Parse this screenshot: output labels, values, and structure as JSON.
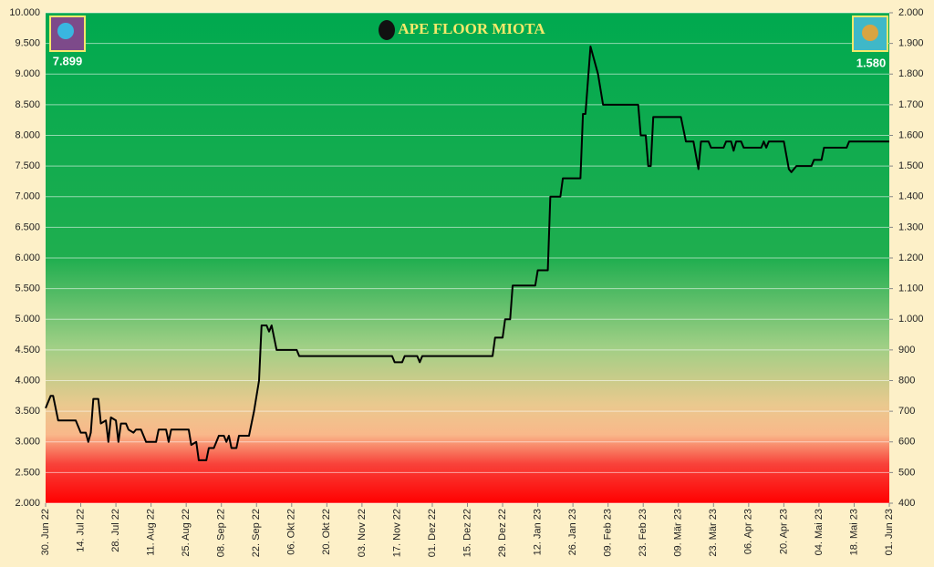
{
  "chart_data": {
    "type": "line",
    "title": "APE FLOOR MIOTA",
    "left_label": "7.899",
    "right_label": "1.580",
    "x": [
      "2022-06-30",
      "2022-07-02",
      "2022-07-03",
      "2022-07-05",
      "2022-07-12",
      "2022-07-14",
      "2022-07-16",
      "2022-07-17",
      "2022-07-18",
      "2022-07-19",
      "2022-07-21",
      "2022-07-22",
      "2022-07-24",
      "2022-07-25",
      "2022-07-26",
      "2022-07-28",
      "2022-07-29",
      "2022-07-30",
      "2022-08-01",
      "2022-08-02",
      "2022-08-04",
      "2022-08-05",
      "2022-08-07",
      "2022-08-09",
      "2022-08-13",
      "2022-08-14",
      "2022-08-17",
      "2022-08-18",
      "2022-08-19",
      "2022-08-26",
      "2022-08-27",
      "2022-08-29",
      "2022-08-30",
      "2022-09-02",
      "2022-09-03",
      "2022-09-05",
      "2022-09-07",
      "2022-09-09",
      "2022-09-10",
      "2022-09-11",
      "2022-09-12",
      "2022-09-14",
      "2022-09-15",
      "2022-09-19",
      "2022-09-21",
      "2022-09-23",
      "2022-09-24",
      "2022-09-26",
      "2022-09-27",
      "2022-09-28",
      "2022-09-30",
      "2022-10-08",
      "2022-10-09",
      "2022-11-15",
      "2022-11-16",
      "2022-11-19",
      "2022-11-20",
      "2022-11-25",
      "2022-11-26",
      "2022-11-27",
      "2022-12-25",
      "2022-12-26",
      "2022-12-29",
      "2022-12-30",
      "2023-01-01",
      "2023-01-02",
      "2023-01-11",
      "2023-01-12",
      "2023-01-16",
      "2023-01-17",
      "2023-01-21",
      "2023-01-22",
      "2023-01-29",
      "2023-01-30",
      "2023-01-31",
      "2023-02-02",
      "2023-02-04",
      "2023-02-05",
      "2023-02-07",
      "2023-02-21",
      "2023-02-22",
      "2023-02-24",
      "2023-02-25",
      "2023-02-26",
      "2023-02-27",
      "2023-03-10",
      "2023-03-11",
      "2023-03-12",
      "2023-03-15",
      "2023-03-17",
      "2023-03-18",
      "2023-03-21",
      "2023-03-22",
      "2023-03-27",
      "2023-03-28",
      "2023-03-30",
      "2023-03-31",
      "2023-04-01",
      "2023-04-03",
      "2023-04-04",
      "2023-04-11",
      "2023-04-12",
      "2023-04-13",
      "2023-04-14",
      "2023-04-20",
      "2023-04-22",
      "2023-04-23",
      "2023-04-25",
      "2023-05-01",
      "2023-05-02",
      "2023-05-05",
      "2023-05-06",
      "2023-05-15",
      "2023-05-16",
      "2023-06-01"
    ],
    "series": [
      {
        "color": "#000000",
        "values": [
          3550,
          3750,
          3750,
          3350,
          3350,
          3150,
          3150,
          3000,
          3150,
          3700,
          3700,
          3300,
          3350,
          3000,
          3400,
          3350,
          3000,
          3300,
          3300,
          3200,
          3150,
          3200,
          3200,
          3000,
          3000,
          3200,
          3200,
          3000,
          3200,
          3200,
          2950,
          3000,
          2700,
          2700,
          2900,
          2900,
          3100,
          3100,
          3000,
          3100,
          2900,
          2900,
          3100,
          3100,
          3500,
          4000,
          4900,
          4900,
          4800,
          4900,
          4500,
          4500,
          4400,
          4400,
          4300,
          4300,
          4400,
          4400,
          4300,
          4400,
          4400,
          4700,
          4700,
          5000,
          5000,
          5550,
          5550,
          5800,
          5800,
          7000,
          7000,
          7300,
          7300,
          8350,
          8350,
          9450,
          9150,
          9000,
          8500,
          8500,
          8000,
          8000,
          7500,
          7500,
          8300,
          8300,
          8100,
          7900,
          7900,
          7450,
          7900,
          7900,
          7800,
          7800,
          7900,
          7900,
          7750,
          7900,
          7900,
          7800,
          7800,
          7900,
          7800,
          7900,
          7900,
          7450,
          7400,
          7500,
          7500,
          7600,
          7600,
          7800,
          7800,
          7900,
          7899
        ]
      }
    ],
    "xlim": [
      "2022-06-30",
      "2023-06-01"
    ],
    "xticks": [
      {
        "value": "2022-06-30",
        "label": "30. Jun 22"
      },
      {
        "value": "2022-07-14",
        "label": "14. Jul 22"
      },
      {
        "value": "2022-07-28",
        "label": "28. Jul 22"
      },
      {
        "value": "2022-08-11",
        "label": "11. Aug 22"
      },
      {
        "value": "2022-08-25",
        "label": "25. Aug 22"
      },
      {
        "value": "2022-09-08",
        "label": "08. Sep 22"
      },
      {
        "value": "2022-09-22",
        "label": "22. Sep 22"
      },
      {
        "value": "2022-10-06",
        "label": "06. Okt 22"
      },
      {
        "value": "2022-10-20",
        "label": "20. Okt 22"
      },
      {
        "value": "2022-11-03",
        "label": "03. Nov 22"
      },
      {
        "value": "2022-11-17",
        "label": "17. Nov 22"
      },
      {
        "value": "2022-12-01",
        "label": "01. Dez 22"
      },
      {
        "value": "2022-12-15",
        "label": "15. Dez 22"
      },
      {
        "value": "2022-12-29",
        "label": "29. Dez 22"
      },
      {
        "value": "2023-01-12",
        "label": "12. Jan 23"
      },
      {
        "value": "2023-01-26",
        "label": "26. Jan 23"
      },
      {
        "value": "2023-02-09",
        "label": "09. Feb 23"
      },
      {
        "value": "2023-02-23",
        "label": "23. Feb 23"
      },
      {
        "value": "2023-03-09",
        "label": "09. Mär 23"
      },
      {
        "value": "2023-03-23",
        "label": "23. Mär 23"
      },
      {
        "value": "2023-04-06",
        "label": "06. Apr 23"
      },
      {
        "value": "2023-04-20",
        "label": "20. Apr 23"
      },
      {
        "value": "2023-05-04",
        "label": "04. Mai 23"
      },
      {
        "value": "2023-05-18",
        "label": "18. Mai 23"
      },
      {
        "value": "2023-06-01",
        "label": "01. Jun 23"
      }
    ],
    "ylim": [
      2000,
      10000
    ],
    "yticks": [
      {
        "value": 2000,
        "label": "2.000"
      },
      {
        "value": 2500,
        "label": "2.500"
      },
      {
        "value": 3000,
        "label": "3.000"
      },
      {
        "value": 3500,
        "label": "3.500"
      },
      {
        "value": 4000,
        "label": "4.000"
      },
      {
        "value": 4500,
        "label": "4.500"
      },
      {
        "value": 5000,
        "label": "5.000"
      },
      {
        "value": 5500,
        "label": "5.500"
      },
      {
        "value": 6000,
        "label": "6.000"
      },
      {
        "value": 6500,
        "label": "6.500"
      },
      {
        "value": 7000,
        "label": "7.000"
      },
      {
        "value": 7500,
        "label": "7.500"
      },
      {
        "value": 8000,
        "label": "8.000"
      },
      {
        "value": 8500,
        "label": "8.500"
      },
      {
        "value": 9000,
        "label": "9.000"
      },
      {
        "value": 9500,
        "label": "9.500"
      },
      {
        "value": 10000,
        "label": "10.000"
      }
    ],
    "y2lim": [
      400,
      2000
    ],
    "y2ticks": [
      400,
      500,
      600,
      700,
      800,
      900,
      {
        "value": 1000,
        "label": "1.000"
      },
      {
        "value": 1100,
        "label": "1.100"
      },
      {
        "value": 1200,
        "label": "1.200"
      },
      {
        "value": 1300,
        "label": "1.300"
      },
      {
        "value": 1400,
        "label": "1.400"
      },
      {
        "value": 1500,
        "label": "1.500"
      },
      {
        "value": 1600,
        "label": "1.600"
      },
      {
        "value": 1700,
        "label": "1.700"
      },
      {
        "value": 1800,
        "label": "1.800"
      },
      {
        "value": 1900,
        "label": "1.900"
      },
      {
        "value": 2000,
        "label": "2.000"
      }
    ],
    "grid": true
  }
}
